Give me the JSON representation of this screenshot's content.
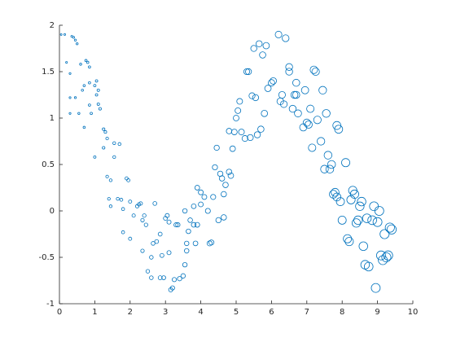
{
  "chart_data": {
    "type": "scatter",
    "color": "#0072bd",
    "xlim": [
      0,
      10
    ],
    "ylim": [
      -1,
      2
    ],
    "xticks": [
      0,
      1,
      2,
      3,
      4,
      5,
      6,
      7,
      8,
      9,
      10
    ],
    "yticks": [
      -1,
      -0.5,
      0,
      0.5,
      1,
      1.5,
      2
    ],
    "x": [
      0.05,
      0.15,
      0.2,
      0.3,
      0.35,
      0.4,
      0.45,
      0.5,
      0.3,
      0.3,
      0.45,
      0.55,
      0.6,
      0.65,
      0.7,
      0.75,
      0.8,
      0.85,
      0.85,
      0.7,
      0.85,
      0.9,
      1.0,
      1.05,
      1.1,
      1.05,
      1.1,
      1.15,
      1.0,
      1.25,
      1.3,
      1.25,
      1.35,
      1.35,
      1.45,
      1.4,
      1.55,
      1.7,
      1.55,
      1.45,
      1.65,
      1.75,
      1.8,
      1.9,
      1.95,
      1.8,
      2.0,
      2.0,
      2.1,
      2.2,
      2.25,
      2.3,
      2.35,
      2.4,
      2.45,
      2.35,
      2.5,
      2.6,
      2.6,
      2.65,
      2.75,
      2.7,
      2.85,
      2.9,
      2.85,
      2.95,
      3.0,
      3.05,
      3.1,
      3.1,
      3.15,
      3.2,
      3.25,
      3.3,
      3.35,
      3.4,
      3.5,
      3.55,
      3.6,
      3.6,
      3.55,
      3.65,
      3.7,
      3.8,
      3.8,
      3.85,
      3.9,
      3.9,
      4.0,
      4.0,
      4.1,
      4.2,
      4.25,
      4.3,
      4.35,
      4.4,
      4.45,
      4.5,
      4.55,
      4.6,
      4.65,
      4.65,
      4.7,
      4.8,
      4.8,
      4.85,
      4.9,
      4.95,
      5.0,
      5.05,
      5.1,
      5.15,
      5.25,
      5.3,
      5.35,
      5.4,
      5.45,
      5.5,
      5.55,
      5.6,
      5.65,
      5.75,
      5.7,
      5.85,
      5.8,
      5.9,
      6.0,
      6.05,
      6.2,
      6.25,
      6.3,
      6.35,
      6.4,
      6.5,
      6.5,
      6.6,
      6.65,
      6.7,
      6.7,
      6.75,
      6.9,
      6.95,
      7.0,
      7.05,
      7.1,
      7.15,
      7.2,
      7.25,
      7.3,
      7.4,
      7.45,
      7.5,
      7.55,
      7.6,
      7.65,
      7.7,
      7.75,
      7.8,
      7.85,
      7.85,
      7.9,
      7.95,
      8.0,
      8.1,
      8.15,
      8.2,
      8.25,
      8.3,
      8.35,
      8.4,
      8.45,
      8.5,
      8.55,
      8.6,
      8.65,
      8.7,
      8.75,
      8.85,
      8.9,
      8.95,
      9.0,
      9.05,
      9.1,
      9.15,
      9.2,
      9.25,
      9.3,
      9.35,
      9.4
    ],
    "values": [
      1.9,
      1.9,
      1.6,
      1.48,
      1.88,
      1.87,
      1.84,
      1.8,
      1.05,
      1.22,
      1.22,
      1.05,
      1.58,
      1.3,
      1.35,
      1.62,
      1.6,
      1.55,
      1.38,
      0.9,
      1.14,
      1.05,
      1.35,
      1.4,
      1.3,
      1.25,
      1.15,
      1.1,
      0.58,
      0.88,
      0.85,
      0.68,
      0.78,
      0.37,
      0.33,
      0.13,
      0.73,
      0.72,
      0.58,
      0.05,
      0.13,
      0.12,
      0.02,
      0.35,
      0.33,
      -0.23,
      0.1,
      -0.3,
      -0.05,
      0.05,
      0.07,
      0.08,
      -0.1,
      -0.05,
      -0.15,
      -0.43,
      -0.65,
      -0.5,
      -0.72,
      -0.35,
      -0.33,
      0.08,
      -0.25,
      -0.48,
      -0.72,
      -0.72,
      -0.08,
      -0.05,
      -0.45,
      -0.12,
      -0.85,
      -0.83,
      -0.74,
      -0.15,
      -0.15,
      -0.73,
      -0.7,
      -0.58,
      -0.43,
      -0.35,
      0.0,
      -0.22,
      -0.1,
      0.05,
      -0.15,
      -0.35,
      -0.15,
      0.25,
      0.2,
      0.07,
      0.15,
      0.0,
      -0.35,
      -0.34,
      0.15,
      0.47,
      0.68,
      -0.1,
      0.4,
      0.35,
      -0.07,
      0.18,
      0.28,
      0.86,
      0.42,
      0.38,
      0.67,
      0.85,
      1.0,
      1.08,
      1.18,
      0.85,
      0.78,
      1.5,
      1.5,
      0.79,
      1.24,
      1.75,
      1.22,
      0.82,
      1.8,
      1.68,
      0.88,
      1.78,
      1.05,
      1.32,
      1.38,
      1.4,
      1.9,
      1.18,
      1.25,
      1.15,
      1.86,
      1.55,
      1.5,
      1.1,
      1.25,
      1.25,
      1.38,
      1.05,
      0.9,
      1.3,
      0.95,
      0.93,
      1.1,
      0.68,
      1.52,
      1.5,
      0.98,
      0.75,
      1.3,
      0.45,
      1.05,
      0.6,
      0.45,
      0.5,
      0.18,
      0.2,
      0.15,
      0.92,
      0.88,
      0.1,
      -0.1,
      0.52,
      -0.3,
      -0.33,
      0.12,
      0.22,
      0.18,
      -0.13,
      -0.1,
      0.05,
      0.1,
      -0.38,
      -0.58,
      -0.08,
      -0.6,
      -0.1,
      0.05,
      -0.83,
      -0.12,
      0.0,
      -0.48,
      -0.53,
      -0.25,
      -0.5,
      -0.48,
      -0.18,
      -0.2
    ]
  }
}
